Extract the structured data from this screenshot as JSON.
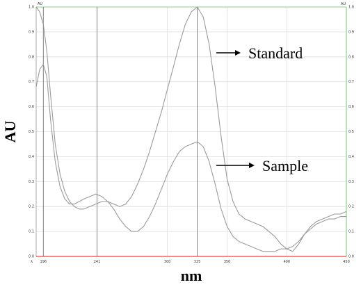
{
  "chart_data": {
    "type": "line",
    "xlabel": "nm",
    "ylabel": "AU",
    "left_axis_unit": "AU",
    "right_axis_unit": "AU",
    "xlim": [
      190,
      450
    ],
    "ylim": [
      0,
      1.0
    ],
    "x_tick_labels": [
      "196",
      "241",
      "300",
      "325",
      "350",
      "400",
      "450"
    ],
    "x_tick_values": [
      196,
      241,
      300,
      325,
      350,
      400,
      450
    ],
    "x_origin_label": "λ",
    "y_ticks": [
      "0.0",
      "0.1",
      "0.2",
      "0.3",
      "0.4",
      "0.5",
      "0.6",
      "0.7",
      "0.8",
      "0.9",
      "1.0"
    ],
    "y_tick_values": [
      0.0,
      0.1,
      0.2,
      0.3,
      0.4,
      0.5,
      0.6,
      0.7,
      0.8,
      0.9,
      1.0
    ],
    "grid": true,
    "marker_lines_x": [
      196,
      241,
      325
    ],
    "series": [
      {
        "name": "Standard",
        "x": [
          190,
          193,
          196,
          199,
          202,
          206,
          210,
          214,
          218,
          222,
          226,
          230,
          235,
          240,
          245,
          250,
          255,
          260,
          265,
          270,
          275,
          280,
          285,
          290,
          295,
          300,
          305,
          310,
          315,
          320,
          325,
          330,
          335,
          340,
          345,
          350,
          355,
          360,
          365,
          370,
          375,
          380,
          385,
          390,
          395,
          400,
          405,
          410,
          415,
          420,
          425,
          430,
          435,
          440,
          445,
          450
        ],
        "y": [
          1.0,
          0.98,
          0.93,
          0.82,
          0.65,
          0.45,
          0.33,
          0.26,
          0.22,
          0.2,
          0.19,
          0.19,
          0.2,
          0.21,
          0.22,
          0.22,
          0.21,
          0.2,
          0.21,
          0.24,
          0.29,
          0.35,
          0.42,
          0.5,
          0.58,
          0.67,
          0.76,
          0.85,
          0.93,
          0.98,
          1.0,
          0.96,
          0.85,
          0.68,
          0.48,
          0.31,
          0.22,
          0.17,
          0.15,
          0.14,
          0.13,
          0.12,
          0.1,
          0.08,
          0.05,
          0.03,
          0.02,
          0.05,
          0.09,
          0.12,
          0.14,
          0.15,
          0.16,
          0.17,
          0.17,
          0.18
        ]
      },
      {
        "name": "Sample",
        "x": [
          190,
          193,
          196,
          199,
          202,
          206,
          210,
          214,
          218,
          222,
          226,
          230,
          235,
          240,
          245,
          250,
          255,
          260,
          265,
          270,
          275,
          280,
          285,
          290,
          295,
          300,
          305,
          310,
          315,
          320,
          325,
          330,
          335,
          340,
          345,
          350,
          355,
          360,
          365,
          370,
          375,
          380,
          385,
          390,
          395,
          400,
          405,
          410,
          415,
          420,
          425,
          430,
          435,
          440,
          445,
          450
        ],
        "y": [
          0.68,
          0.75,
          0.77,
          0.72,
          0.55,
          0.38,
          0.28,
          0.23,
          0.21,
          0.21,
          0.22,
          0.23,
          0.24,
          0.25,
          0.24,
          0.22,
          0.19,
          0.15,
          0.12,
          0.1,
          0.1,
          0.12,
          0.16,
          0.21,
          0.27,
          0.33,
          0.38,
          0.42,
          0.44,
          0.45,
          0.46,
          0.44,
          0.38,
          0.29,
          0.19,
          0.12,
          0.08,
          0.06,
          0.05,
          0.04,
          0.03,
          0.02,
          0.02,
          0.02,
          0.03,
          0.03,
          0.04,
          0.06,
          0.09,
          0.11,
          0.13,
          0.14,
          0.15,
          0.15,
          0.16,
          0.16
        ]
      }
    ],
    "annotations": [
      {
        "text": "Standard",
        "points_to_series": "Standard"
      },
      {
        "text": "Sample",
        "points_to_series": "Sample"
      }
    ],
    "colors": {
      "series": "#9a9a9a",
      "grid": "#dddddd",
      "axis_frame": "#aaaaaa",
      "baseline": "#ff3b3b",
      "right_axis": "#66cc66"
    }
  }
}
